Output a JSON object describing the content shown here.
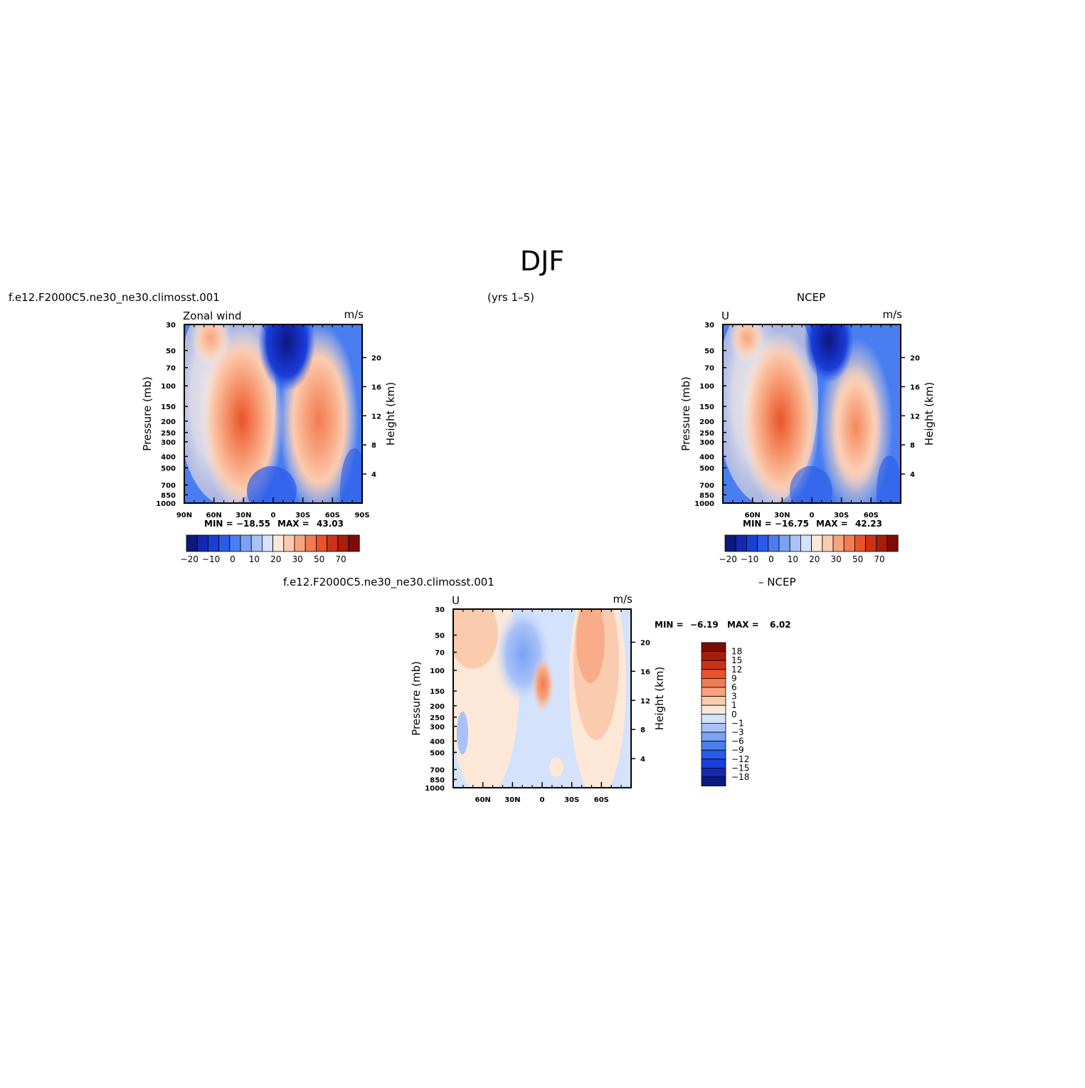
{
  "page": {
    "title": "DJF",
    "case_name": "f.e12.F2000C5.ne30_ne30.climosst.001",
    "years": "(yrs 1–5)",
    "obs_name": "NCEP",
    "diff_case_name": "f.e12.F2000C5.ne30_ne30.climosst.001",
    "diff_obs_name": "– NCEP"
  },
  "colors": {
    "wind_palette": [
      "#0c1a7e",
      "#1428b2",
      "#1a3fd8",
      "#2a5ae8",
      "#4a7ef0",
      "#7aa2f4",
      "#a8c2f8",
      "#d4e2fb",
      "#fde8d8",
      "#fbcbb0",
      "#f7a47e",
      "#f27b52",
      "#e8532c",
      "#cc3316",
      "#a81d0c",
      "#7d0c06"
    ],
    "diff_palette": [
      "#7d0c06",
      "#a81d0c",
      "#cc3316",
      "#e8532c",
      "#f27b52",
      "#f7a47e",
      "#fbcbb0",
      "#fde8d8",
      "#d4e2fb",
      "#a8c2f8",
      "#7aa2f4",
      "#4a7ef0",
      "#2a5ae8",
      "#1a3fd8",
      "#1428b2",
      "#0c1a7e"
    ]
  },
  "chart_data": [
    {
      "type": "heatmap",
      "variable": "Zonal wind",
      "units": "m/s",
      "ylabel": "Pressure (mb)",
      "ylabel_right": "Height (km)",
      "pressure_ticks": [
        30,
        50,
        70,
        100,
        150,
        200,
        250,
        300,
        400,
        500,
        700,
        850,
        1000
      ],
      "height_ticks": [
        4,
        8,
        12,
        16,
        20
      ],
      "lat_ticks": [
        "90N",
        "60N",
        "30N",
        "0",
        "30S",
        "60S",
        "90S"
      ],
      "lat_range": [
        90,
        -90
      ],
      "min_label": "MIN =",
      "min_value": "−18.55",
      "max_label": "MAX =",
      "max_value": "43.03",
      "colorbar_labels": [
        "−20",
        "−10",
        "0",
        "10",
        "20",
        "30",
        "50",
        "70"
      ],
      "jets": [
        {
          "lat": 30,
          "pressure": 200,
          "max": 43.03
        },
        {
          "lat": -45,
          "pressure": 250,
          "max": 35
        }
      ],
      "min_core": {
        "lat": -15,
        "pressure": 40,
        "value": -18.55
      }
    },
    {
      "type": "heatmap",
      "variable": "U",
      "units": "m/s",
      "ylabel": "Pressure (mb)",
      "ylabel_right": "Height (km)",
      "pressure_ticks": [
        30,
        50,
        70,
        100,
        150,
        200,
        250,
        300,
        400,
        500,
        700,
        850,
        1000
      ],
      "height_ticks": [
        4,
        8,
        12,
        16,
        20
      ],
      "lat_ticks": [
        "60N",
        "30N",
        "0",
        "30S",
        "60S"
      ],
      "lat_range": [
        90,
        -90
      ],
      "min_label": "MIN =",
      "min_value": "−16.75",
      "max_label": "MAX =",
      "max_value": "42.23",
      "colorbar_labels": [
        "−20",
        "−10",
        "0",
        "10",
        "20",
        "30",
        "50",
        "70"
      ],
      "jets": [
        {
          "lat": 30,
          "pressure": 200,
          "max": 42.23
        },
        {
          "lat": -45,
          "pressure": 300,
          "max": 30
        }
      ],
      "min_core": {
        "lat": -15,
        "pressure": 40,
        "value": -16.75
      }
    },
    {
      "type": "heatmap",
      "variable": "U",
      "units": "m/s",
      "ylabel": "Pressure (mb)",
      "ylabel_right": "Height (km)",
      "pressure_ticks": [
        30,
        50,
        70,
        100,
        150,
        200,
        250,
        300,
        400,
        500,
        700,
        850,
        1000
      ],
      "height_ticks": [
        4,
        8,
        12,
        16,
        20
      ],
      "lat_ticks": [
        "60N",
        "30N",
        "0",
        "30S",
        "60S"
      ],
      "lat_range": [
        90,
        -90
      ],
      "min_label": "MIN =",
      "min_value": "−6.19",
      "max_label": "MAX =",
      "max_value": "6.02",
      "colorbar_labels": [
        "18",
        "15",
        "12",
        "9",
        "6",
        "3",
        "1",
        "0",
        "−1",
        "−3",
        "−6",
        "−9",
        "−12",
        "−15",
        "−18"
      ]
    }
  ]
}
